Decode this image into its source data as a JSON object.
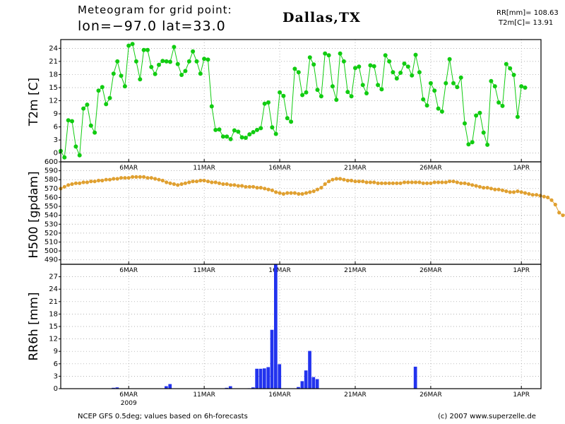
{
  "header": {
    "meteogram_label": "Meteogram for grid point:",
    "coords": "lon=−97.0 lat=33.0",
    "city": "Dallas,TX",
    "stat_rr": "RR[mm]= 108.63",
    "stat_t2m": "T2m[C]= 13.91"
  },
  "footer": {
    "source": "NCEP GFS 0.5deg; values based on 6h-forecasts",
    "credit": "(c) 2007 www.superzelle.de"
  },
  "colors": {
    "t2m": "#11cc11",
    "h500": "#e0a030",
    "rr": "#2233ee",
    "grid": "#9a9a9a"
  },
  "chart_data": [
    {
      "type": "line",
      "name": "t2m-panel",
      "ylabel": "T2m [C]",
      "x_unit": "days since 2009-03-01",
      "xlim": [
        0.5,
        32.3
      ],
      "ylim": [
        -2,
        26
      ],
      "yticks": [
        0,
        3,
        6,
        9,
        12,
        15,
        18,
        21,
        24
      ],
      "xtick_labels": [
        "6MAR",
        "11MAR",
        "16MAR",
        "21MAR",
        "26MAR",
        "1APR"
      ],
      "xtick_days": [
        5,
        10,
        15,
        20,
        25,
        31
      ],
      "grid": true,
      "series": [
        {
          "start_day": 0.5,
          "step_days": 0.25,
          "values": [
            0.5,
            -1.0,
            7.5,
            7.3,
            1.5,
            -0.5,
            10.2,
            11.1,
            6.3,
            4.7,
            14.3,
            15.1,
            11.2,
            12.6,
            18.2,
            21.0,
            17.7,
            15.3,
            24.6,
            25.0,
            21.0,
            16.9,
            23.6,
            23.6,
            19.7,
            18.1,
            20.2,
            21.1,
            21.0,
            20.9,
            24.3,
            20.4,
            17.9,
            18.8,
            21.0,
            23.3,
            21.0,
            18.2,
            21.6,
            21.4,
            10.7,
            5.3,
            5.4,
            3.8,
            3.8,
            3.2,
            5.2,
            4.9,
            3.6,
            3.5,
            4.3,
            4.8,
            5.3,
            5.7,
            11.3,
            11.6,
            5.9,
            4.4,
            13.9,
            13.1,
            8.0,
            7.2,
            19.3,
            18.5,
            13.3,
            13.9,
            21.9,
            20.3,
            14.5,
            13.0,
            22.8,
            22.4,
            15.3,
            12.2,
            22.8,
            21.0,
            14.0,
            13.0,
            19.5,
            19.8,
            15.6,
            13.7,
            20.1,
            19.9,
            15.6,
            14.6,
            22.4,
            21.0,
            18.5,
            17.1,
            18.4,
            20.5,
            19.8,
            17.8,
            22.5,
            18.5,
            12.3,
            10.9,
            16.0,
            14.3,
            10.2,
            9.5,
            16.0,
            21.5,
            16.0,
            15.1,
            17.3,
            6.8,
            2.0,
            2.5,
            8.6,
            9.2,
            4.7,
            1.9,
            16.5,
            15.3,
            11.6,
            10.8,
            20.4,
            19.4,
            17.9,
            8.3,
            15.3,
            15.0
          ]
        }
      ]
    },
    {
      "type": "line",
      "name": "h500-panel",
      "ylabel": "H500 [gpdam]",
      "x_unit": "days since 2009-03-01",
      "xlim": [
        0.5,
        32.3
      ],
      "ylim": [
        485,
        600
      ],
      "yticks": [
        490,
        500,
        510,
        520,
        530,
        540,
        550,
        560,
        570,
        580,
        590,
        600
      ],
      "xtick_labels": [
        "6MAR",
        "11MAR",
        "16MAR",
        "21MAR",
        "26MAR",
        "1APR"
      ],
      "xtick_days": [
        5,
        10,
        15,
        20,
        25,
        31
      ],
      "grid": true,
      "series": [
        {
          "start_day": 0.5,
          "step_days": 0.25,
          "values": [
            570,
            572,
            574,
            575,
            576,
            576,
            577,
            577,
            578,
            578,
            579,
            579,
            580,
            580,
            581,
            581,
            582,
            582,
            582,
            583,
            583,
            583,
            583,
            582,
            582,
            581,
            580,
            579,
            577,
            576,
            575,
            574,
            575,
            576,
            577,
            578,
            578,
            579,
            579,
            578,
            577,
            577,
            576,
            575,
            575,
            574,
            574,
            573,
            573,
            572,
            572,
            572,
            571,
            571,
            570,
            569,
            568,
            566,
            565,
            564,
            565,
            565,
            565,
            564,
            564,
            565,
            566,
            567,
            569,
            571,
            575,
            578,
            580,
            581,
            581,
            580,
            579,
            579,
            578,
            578,
            578,
            577,
            577,
            577,
            576,
            576,
            576,
            576,
            576,
            576,
            576,
            577,
            577,
            577,
            577,
            577,
            576,
            576,
            576,
            577,
            577,
            577,
            577,
            578,
            578,
            577,
            576,
            576,
            575,
            574,
            573,
            572,
            571,
            571,
            570,
            569,
            569,
            568,
            567,
            566,
            566,
            567,
            566,
            565,
            564,
            563,
            563,
            562,
            561,
            560,
            557,
            552,
            543,
            540,
            541,
            553,
            560,
            563,
            566,
            569,
            571,
            571,
            570,
            569,
            568,
            567,
            565,
            564,
            562,
            561,
            562,
            562,
            563,
            563
          ]
        }
      ]
    },
    {
      "type": "bar",
      "name": "rr-panel",
      "ylabel": "RR6h [mm]",
      "x_unit": "days since 2009-03-01",
      "xlim": [
        0.5,
        32.3
      ],
      "ylim": [
        0,
        30
      ],
      "yticks": [
        0,
        3,
        6,
        9,
        12,
        15,
        18,
        21,
        24,
        27
      ],
      "xtick_labels": [
        "6MAR",
        "11MAR",
        "16MAR",
        "21MAR",
        "26MAR",
        "1APR"
      ],
      "xtick_days": [
        5,
        10,
        15,
        20,
        25,
        31
      ],
      "xsub_label": "2009",
      "grid": true,
      "series": [
        {
          "start_day": 0.5,
          "step_days": 0.25,
          "values": [
            0,
            0,
            0,
            0,
            0,
            0,
            0,
            0,
            0,
            0,
            0,
            0,
            0,
            0,
            0.2,
            0.3,
            0,
            0,
            0,
            0,
            0,
            0,
            0,
            0,
            0,
            0,
            0,
            0,
            0.6,
            1.1,
            0,
            0,
            0,
            0,
            0,
            0,
            0,
            0,
            0,
            0,
            0,
            0,
            0,
            0,
            0.2,
            0.6,
            0,
            0,
            0,
            0,
            0.1,
            0.3,
            4.8,
            4.8,
            4.9,
            5.2,
            14.2,
            30.0,
            5.9,
            0,
            0,
            0,
            0,
            0.4,
            1.8,
            4.4,
            9.1,
            2.8,
            2.3,
            0,
            0,
            0,
            0,
            0,
            0,
            0,
            0,
            0,
            0,
            0,
            0,
            0,
            0,
            0,
            0,
            0,
            0,
            0,
            0,
            0,
            0,
            0,
            0,
            0,
            5.3,
            0,
            0,
            0,
            0,
            0,
            0,
            0,
            0,
            0,
            0,
            0,
            0,
            0,
            0,
            0,
            0,
            0,
            0,
            0,
            0,
            0,
            0,
            0,
            0,
            0,
            0,
            0,
            0,
            0,
            0,
            0,
            0,
            0,
            0,
            0,
            0,
            0,
            0,
            0,
            0,
            0,
            0,
            0,
            0,
            0,
            1.2,
            0.5,
            0,
            0.6,
            4.0,
            0,
            0,
            0,
            0,
            0,
            0,
            0,
            0,
            0,
            0.9,
            0,
            0,
            0,
            0,
            0,
            0.2,
            0,
            0,
            0,
            0,
            0,
            0,
            0,
            0.4,
            0.6,
            2.0,
            3.4,
            0,
            0,
            0,
            0,
            0,
            0,
            0,
            0,
            0,
            0,
            0,
            0,
            0,
            0,
            0,
            0,
            0,
            0,
            0,
            0,
            0.9,
            0.2,
            0,
            0,
            0,
            0,
            0,
            0,
            0,
            0,
            0,
            0,
            0,
            0,
            0
          ]
        }
      ]
    }
  ]
}
